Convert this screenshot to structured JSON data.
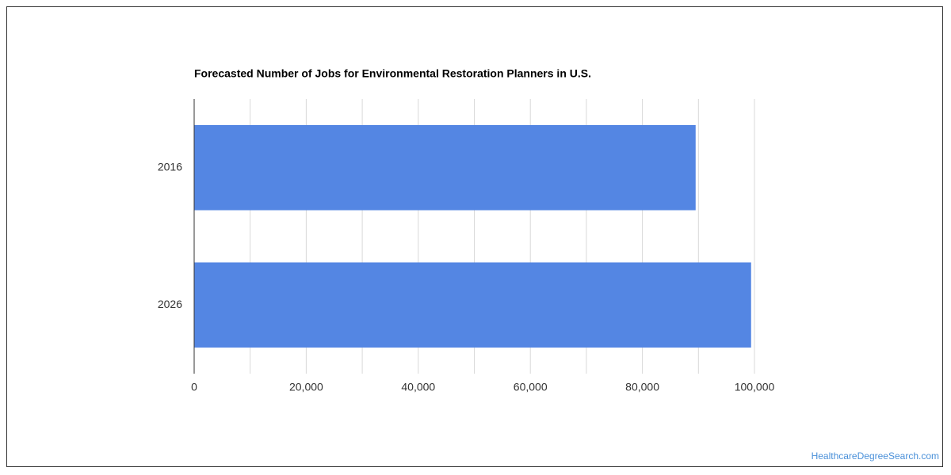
{
  "chart_data": {
    "type": "bar",
    "orientation": "horizontal",
    "title": "Forecasted Number of Jobs for Environmental Restoration Planners in U.S.",
    "categories": [
      "2016",
      "2026"
    ],
    "values": [
      89500,
      99400
    ],
    "color": "#5486e3",
    "xlim": [
      0,
      100000
    ],
    "xticks": [
      0,
      {
        "value": 20000,
        "label": "20,000"
      },
      {
        "value": 40000,
        "label": "40,000"
      },
      {
        "value": 60000,
        "label": "60,000"
      },
      {
        "value": 80000,
        "label": "80,000"
      },
      {
        "value": 100000,
        "label": "100,000"
      }
    ],
    "x_minor_ticks": [
      10000,
      30000,
      50000,
      70000,
      90000
    ],
    "grid": true
  },
  "watermark": "HealthcareDegreeSearch.com"
}
